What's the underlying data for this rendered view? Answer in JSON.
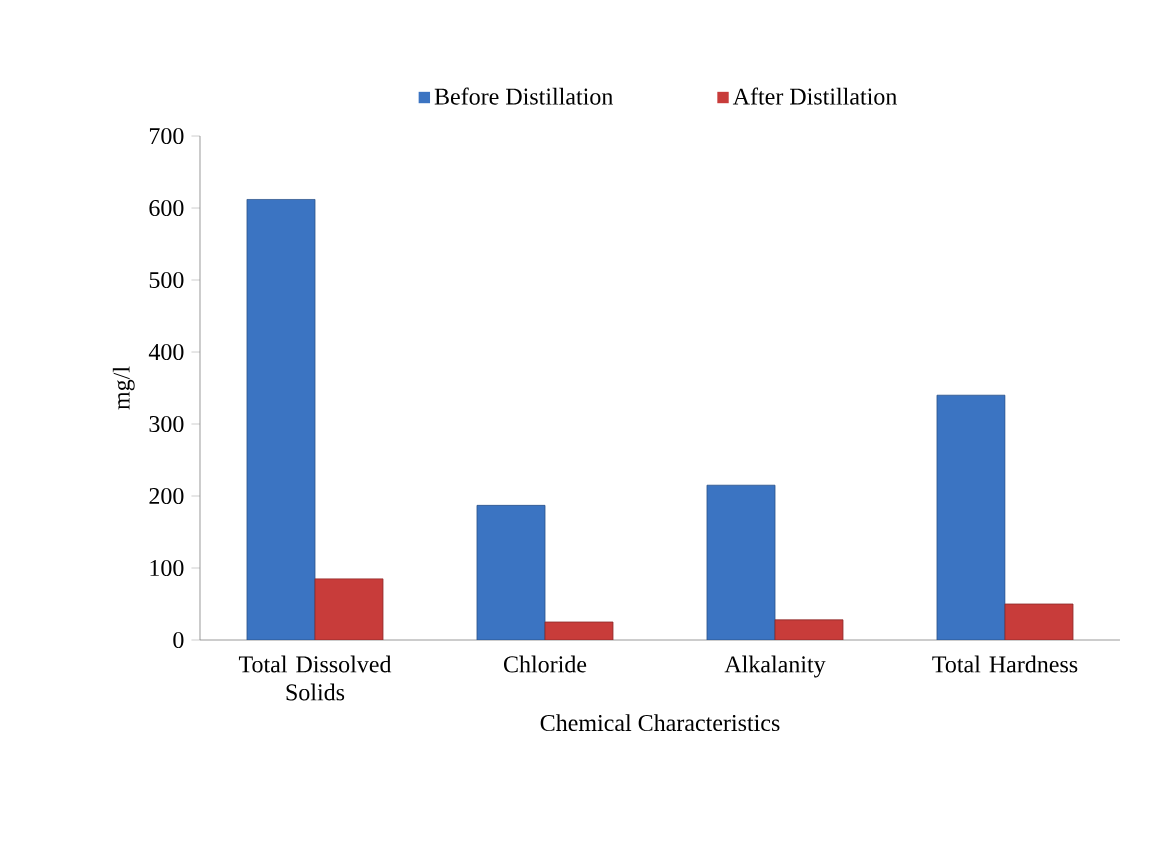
{
  "chart_data": {
    "type": "bar",
    "xlabel": "Chemical Characteristics",
    "ylabel": "mg/l",
    "categories": [
      "Total Dissolved Solids",
      "Chloride",
      "Alkalanity",
      "Total Hardness"
    ],
    "series": [
      {
        "name": "Before Distillation",
        "color": "#3b74c2",
        "values": [
          612,
          187,
          215,
          340
        ]
      },
      {
        "name": "After Distillation",
        "color": "#c83c3a",
        "values": [
          85,
          25,
          28,
          50
        ]
      }
    ],
    "ylim": [
      0,
      700
    ],
    "yticks": [
      0,
      100,
      200,
      300,
      400,
      500,
      600,
      700
    ],
    "grid": false,
    "legend": "top"
  }
}
